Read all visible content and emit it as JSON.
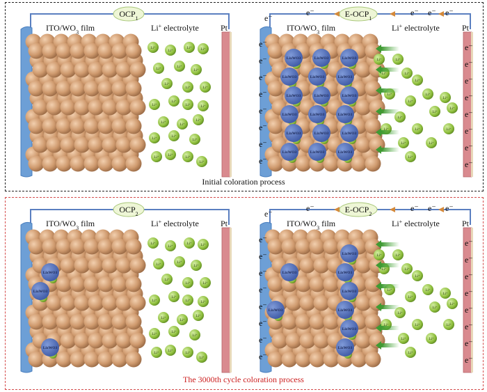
{
  "colors": {
    "copper": "#c8956a",
    "lixwo3_blue": "#4f6fb8",
    "li_green": "#8fbf3d",
    "ito_blue": "#6d9fd6",
    "pt_red": "#d98a8f",
    "wire": "#5a7fc0",
    "electron_arrow": "#d4893a",
    "frame_bottom": "#d44a4a"
  },
  "panels": [
    {
      "id": "top-left",
      "title": "OCP",
      "title_sub": "1",
      "film_label": "ITO/WO",
      "film_label_sub": "3",
      "film_label_tail": " film",
      "electrolyte_label": "Li",
      "electrolyte_sup": "+",
      "electrolyte_tail": " electrolyte",
      "pt_label": "Pt"
    },
    {
      "id": "top-right",
      "title": "E-OCP",
      "title_sub": "1",
      "film_label": "ITO/WO",
      "film_label_sub": "3",
      "film_label_tail": " film",
      "electrolyte_label": "Li",
      "electrolyte_sup": "+",
      "electrolyte_tail": " electrolyte",
      "pt_label": "Pt"
    },
    {
      "id": "bottom-left",
      "title": "OCP",
      "title_sub": "2",
      "film_label": "ITO/WO",
      "film_label_sub": "3",
      "film_label_tail": " film",
      "electrolyte_label": "Li",
      "electrolyte_sup": "+",
      "electrolyte_tail": " electrolyte",
      "pt_label": "Pt"
    },
    {
      "id": "bottom-right",
      "title": "E-OCP",
      "title_sub": "2",
      "film_label": "ITO/WO",
      "film_label_sub": "3",
      "film_label_tail": " film",
      "electrolyte_label": "Li",
      "electrolyte_sup": "+",
      "electrolyte_tail": " electrolyte",
      "pt_label": "Pt"
    }
  ],
  "electron_label": "e⁻",
  "li_ion_label": "Li⁺",
  "lixwo3_label": "LixWO3",
  "captions": {
    "top": "Initial coloration process",
    "bottom": "The 3000th cycle coloration process"
  }
}
